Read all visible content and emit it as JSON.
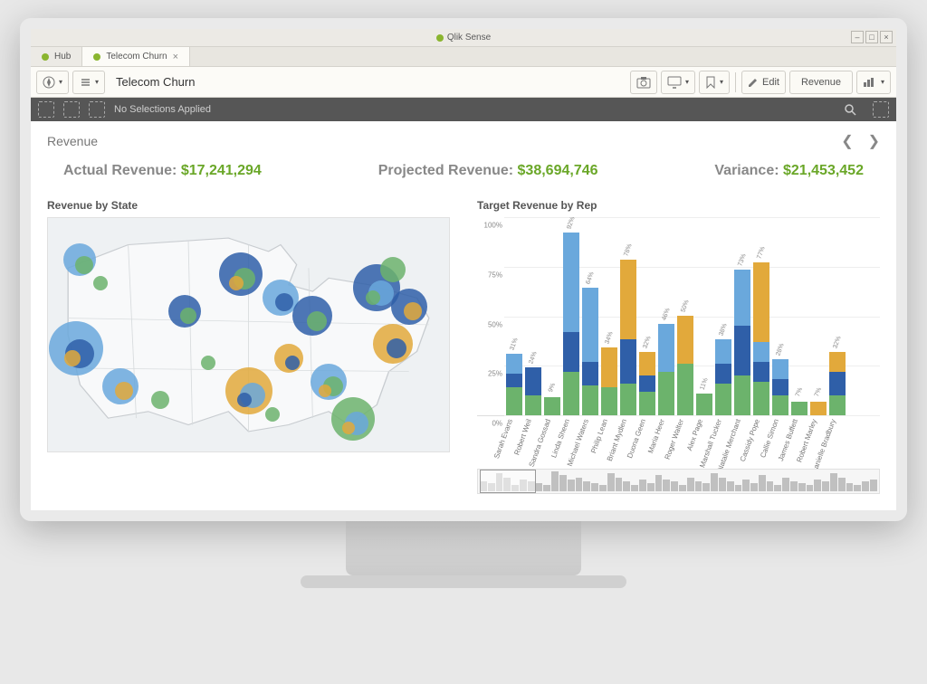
{
  "os": {
    "app_title": "Qlik Sense"
  },
  "tabs": [
    {
      "label": "Hub",
      "active": false
    },
    {
      "label": "Telecom Churn",
      "active": true
    }
  ],
  "toolbar": {
    "title": "Telecom Churn",
    "edit_label": "Edit",
    "sheet_dropdown": "Revenue"
  },
  "selection_bar": {
    "text": "No Selections Applied"
  },
  "sheet": {
    "title": "Revenue",
    "kpis": {
      "actual_label": "Actual Revenue:",
      "actual_value": "$17,241,294",
      "projected_label": "Projected Revenue:",
      "projected_value": "$38,694,746",
      "variance_label": "Variance:",
      "variance_value": "$21,453,452"
    },
    "map": {
      "title": "Revenue by State",
      "background_color": "#eef1f3",
      "colors": {
        "blue": "#2f5fa8",
        "lightblue": "#6aa8dc",
        "green": "#6cb36c",
        "orange": "#e2a93b"
      },
      "bubbles": [
        {
          "x": 8,
          "y": 18,
          "r": 18,
          "c": "#6aa8dc"
        },
        {
          "x": 9,
          "y": 20,
          "r": 10,
          "c": "#6cb36c"
        },
        {
          "x": 7,
          "y": 56,
          "r": 30,
          "c": "#6aa8dc"
        },
        {
          "x": 8,
          "y": 58,
          "r": 16,
          "c": "#2f5fa8"
        },
        {
          "x": 6,
          "y": 60,
          "r": 9,
          "c": "#e2a93b"
        },
        {
          "x": 13,
          "y": 28,
          "r": 8,
          "c": "#6cb36c"
        },
        {
          "x": 18,
          "y": 72,
          "r": 20,
          "c": "#6aa8dc"
        },
        {
          "x": 19,
          "y": 74,
          "r": 10,
          "c": "#e2a93b"
        },
        {
          "x": 28,
          "y": 78,
          "r": 10,
          "c": "#6cb36c"
        },
        {
          "x": 34,
          "y": 40,
          "r": 18,
          "c": "#2f5fa8"
        },
        {
          "x": 35,
          "y": 42,
          "r": 9,
          "c": "#6cb36c"
        },
        {
          "x": 40,
          "y": 62,
          "r": 8,
          "c": "#6cb36c"
        },
        {
          "x": 48,
          "y": 24,
          "r": 24,
          "c": "#2f5fa8"
        },
        {
          "x": 49,
          "y": 26,
          "r": 12,
          "c": "#6cb36c"
        },
        {
          "x": 47,
          "y": 28,
          "r": 8,
          "c": "#e2a93b"
        },
        {
          "x": 50,
          "y": 74,
          "r": 26,
          "c": "#e2a93b"
        },
        {
          "x": 51,
          "y": 76,
          "r": 14,
          "c": "#6aa8dc"
        },
        {
          "x": 49,
          "y": 78,
          "r": 8,
          "c": "#2f5fa8"
        },
        {
          "x": 56,
          "y": 84,
          "r": 8,
          "c": "#6cb36c"
        },
        {
          "x": 58,
          "y": 34,
          "r": 20,
          "c": "#6aa8dc"
        },
        {
          "x": 59,
          "y": 36,
          "r": 10,
          "c": "#2f5fa8"
        },
        {
          "x": 60,
          "y": 60,
          "r": 16,
          "c": "#e2a93b"
        },
        {
          "x": 61,
          "y": 62,
          "r": 8,
          "c": "#2f5fa8"
        },
        {
          "x": 66,
          "y": 42,
          "r": 22,
          "c": "#2f5fa8"
        },
        {
          "x": 67,
          "y": 44,
          "r": 11,
          "c": "#6cb36c"
        },
        {
          "x": 70,
          "y": 70,
          "r": 20,
          "c": "#6aa8dc"
        },
        {
          "x": 71,
          "y": 72,
          "r": 11,
          "c": "#6cb36c"
        },
        {
          "x": 69,
          "y": 74,
          "r": 7,
          "c": "#e2a93b"
        },
        {
          "x": 76,
          "y": 86,
          "r": 24,
          "c": "#6cb36c"
        },
        {
          "x": 77,
          "y": 88,
          "r": 13,
          "c": "#6aa8dc"
        },
        {
          "x": 75,
          "y": 90,
          "r": 7,
          "c": "#e2a93b"
        },
        {
          "x": 82,
          "y": 30,
          "r": 26,
          "c": "#2f5fa8"
        },
        {
          "x": 83,
          "y": 32,
          "r": 14,
          "c": "#6aa8dc"
        },
        {
          "x": 81,
          "y": 34,
          "r": 8,
          "c": "#6cb36c"
        },
        {
          "x": 86,
          "y": 22,
          "r": 14,
          "c": "#6cb36c"
        },
        {
          "x": 90,
          "y": 38,
          "r": 20,
          "c": "#2f5fa8"
        },
        {
          "x": 91,
          "y": 40,
          "r": 10,
          "c": "#e2a93b"
        },
        {
          "x": 86,
          "y": 54,
          "r": 22,
          "c": "#e2a93b"
        },
        {
          "x": 87,
          "y": 56,
          "r": 11,
          "c": "#2f5fa8"
        }
      ]
    },
    "barchart": {
      "title": "Target Revenue by Rep",
      "type": "stacked-bar",
      "ylim": [
        0,
        100
      ],
      "yticks": [
        0,
        25,
        50,
        75,
        100
      ],
      "ytick_suffix": "%",
      "seg_colors": {
        "green": "#6cb36c",
        "blue": "#2f5fa8",
        "lightblue": "#6aa8dc",
        "orange": "#e2a93b"
      },
      "reps": [
        {
          "name": "Sarah Evans",
          "total": 31,
          "segs": [
            {
              "c": "green",
              "v": 14
            },
            {
              "c": "blue",
              "v": 7
            },
            {
              "c": "lightblue",
              "v": 10
            }
          ]
        },
        {
          "name": "Robert Weil",
          "total": 24,
          "segs": [
            {
              "c": "green",
              "v": 10
            },
            {
              "c": "blue",
              "v": 14
            }
          ]
        },
        {
          "name": "Sandra Gossad",
          "total": 9,
          "segs": [
            {
              "c": "green",
              "v": 9
            }
          ]
        },
        {
          "name": "Linda Sheen",
          "total": 92,
          "segs": [
            {
              "c": "green",
              "v": 22
            },
            {
              "c": "blue",
              "v": 20
            },
            {
              "c": "lightblue",
              "v": 50
            }
          ]
        },
        {
          "name": "Michael Waters",
          "total": 64,
          "segs": [
            {
              "c": "green",
              "v": 15
            },
            {
              "c": "blue",
              "v": 12
            },
            {
              "c": "lightblue",
              "v": 37
            }
          ]
        },
        {
          "name": "Philip Lean",
          "total": 34,
          "segs": [
            {
              "c": "green",
              "v": 14
            },
            {
              "c": "orange",
              "v": 20
            }
          ]
        },
        {
          "name": "Briant Mydlen",
          "total": 78,
          "segs": [
            {
              "c": "green",
              "v": 16
            },
            {
              "c": "blue",
              "v": 22
            },
            {
              "c": "orange",
              "v": 40
            }
          ]
        },
        {
          "name": "Duona Geen",
          "total": 32,
          "segs": [
            {
              "c": "green",
              "v": 12
            },
            {
              "c": "blue",
              "v": 8
            },
            {
              "c": "orange",
              "v": 12
            }
          ]
        },
        {
          "name": "Maria Heer",
          "total": 46,
          "segs": [
            {
              "c": "green",
              "v": 22
            },
            {
              "c": "lightblue",
              "v": 24
            }
          ]
        },
        {
          "name": "Roger Walter",
          "total": 50,
          "segs": [
            {
              "c": "green",
              "v": 26
            },
            {
              "c": "orange",
              "v": 24
            }
          ]
        },
        {
          "name": "Alex Page",
          "total": 11,
          "segs": [
            {
              "c": "green",
              "v": 11
            }
          ]
        },
        {
          "name": "Marshall Tucker",
          "total": 38,
          "segs": [
            {
              "c": "green",
              "v": 16
            },
            {
              "c": "blue",
              "v": 10
            },
            {
              "c": "lightblue",
              "v": 12
            }
          ]
        },
        {
          "name": "Natalie Merchant",
          "total": 73,
          "segs": [
            {
              "c": "green",
              "v": 20
            },
            {
              "c": "blue",
              "v": 25
            },
            {
              "c": "lightblue",
              "v": 28
            }
          ]
        },
        {
          "name": "Cassidy Pope",
          "total": 77,
          "segs": [
            {
              "c": "green",
              "v": 17
            },
            {
              "c": "blue",
              "v": 10
            },
            {
              "c": "lightblue",
              "v": 10
            },
            {
              "c": "orange",
              "v": 40
            }
          ]
        },
        {
          "name": "Callie Simon",
          "total": 28,
          "segs": [
            {
              "c": "green",
              "v": 10
            },
            {
              "c": "blue",
              "v": 8
            },
            {
              "c": "lightblue",
              "v": 10
            }
          ]
        },
        {
          "name": "James Buffett",
          "total": 7,
          "segs": [
            {
              "c": "green",
              "v": 7
            }
          ]
        },
        {
          "name": "Robert Marley",
          "total": 7,
          "segs": [
            {
              "c": "orange",
              "v": 7
            }
          ]
        },
        {
          "name": "Danielle Bradbury",
          "total": 32,
          "segs": [
            {
              "c": "green",
              "v": 10
            },
            {
              "c": "blue",
              "v": 12
            },
            {
              "c": "orange",
              "v": 10
            }
          ]
        }
      ],
      "mini": [
        10,
        8,
        18,
        14,
        6,
        12,
        10,
        8,
        6,
        20,
        16,
        12,
        14,
        10,
        8,
        6,
        18,
        14,
        10,
        6,
        12,
        8,
        16,
        12,
        10,
        6,
        14,
        10,
        8,
        18,
        14,
        10,
        6,
        12,
        8,
        16,
        10,
        6,
        14,
        10,
        8,
        6,
        12,
        10,
        18,
        14,
        8,
        6,
        10,
        12
      ]
    }
  },
  "colors": {
    "accent": "#6aa728",
    "grey_text": "#888888"
  }
}
